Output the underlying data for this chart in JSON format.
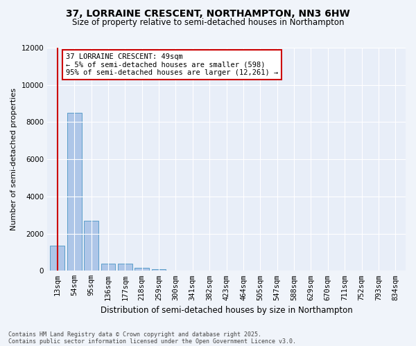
{
  "title": "37, LORRAINE CRESCENT, NORTHAMPTON, NN3 6HW",
  "subtitle": "Size of property relative to semi-detached houses in Northampton",
  "xlabel": "Distribution of semi-detached houses by size in Northampton",
  "ylabel": "Number of semi-detached properties",
  "categories": [
    "13sqm",
    "54sqm",
    "95sqm",
    "136sqm",
    "177sqm",
    "218sqm",
    "259sqm",
    "300sqm",
    "341sqm",
    "382sqm",
    "423sqm",
    "464sqm",
    "505sqm",
    "547sqm",
    "588sqm",
    "629sqm",
    "670sqm",
    "711sqm",
    "752sqm",
    "793sqm",
    "834sqm"
  ],
  "values": [
    1350,
    8500,
    2700,
    400,
    370,
    145,
    95,
    0,
    0,
    0,
    0,
    0,
    0,
    0,
    0,
    0,
    0,
    0,
    0,
    0,
    0
  ],
  "bar_color": "#aec6e8",
  "bar_edge_color": "#5a9ec9",
  "highlight_line_color": "#cc0000",
  "annotation_title": "37 LORRAINE CRESCENT: 49sqm",
  "annotation_line1": "← 5% of semi-detached houses are smaller (598)",
  "annotation_line2": "95% of semi-detached houses are larger (12,261) →",
  "annotation_box_color": "#cc0000",
  "ylim": [
    0,
    12000
  ],
  "yticks": [
    0,
    2000,
    4000,
    6000,
    8000,
    10000,
    12000
  ],
  "footer1": "Contains HM Land Registry data © Crown copyright and database right 2025.",
  "footer2": "Contains public sector information licensed under the Open Government Licence v3.0.",
  "bg_color": "#f0f4fa",
  "plot_bg_color": "#e8eef8",
  "title_fontsize": 10,
  "subtitle_fontsize": 8.5,
  "ylabel_fontsize": 8,
  "xlabel_fontsize": 8.5,
  "tick_fontsize": 7.5,
  "footer_fontsize": 6,
  "ann_fontsize": 7.5
}
